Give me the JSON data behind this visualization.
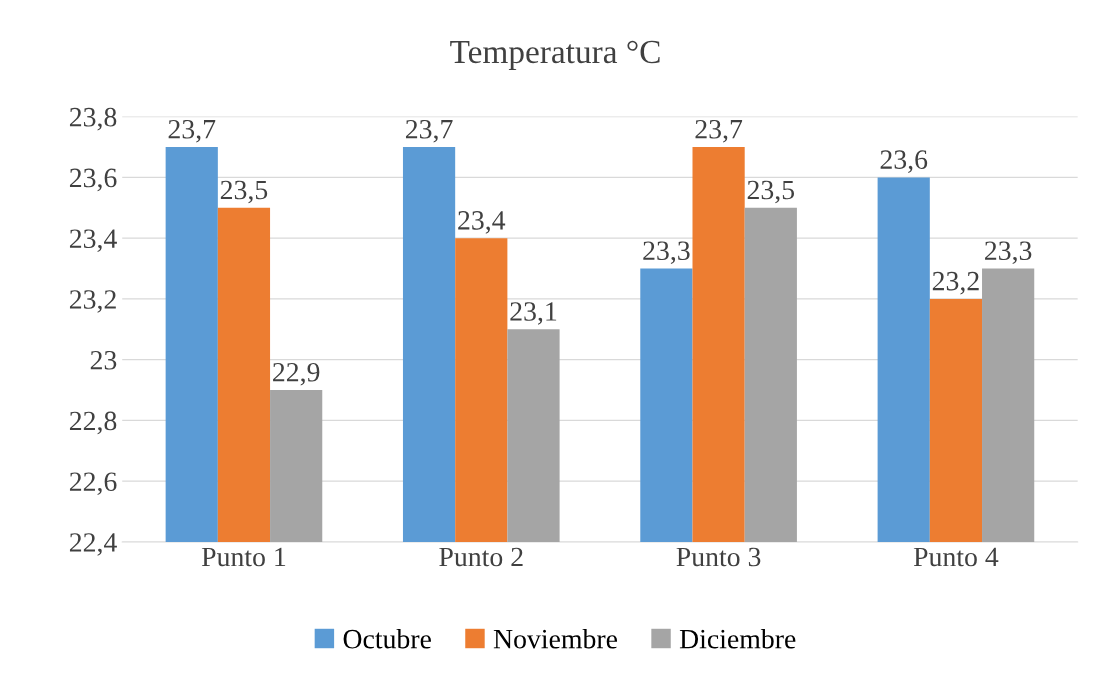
{
  "chart_data": {
    "type": "bar",
    "title": "Temperatura °C",
    "categories": [
      "Punto 1",
      "Punto 2",
      "Punto 3",
      "Punto 4"
    ],
    "series": [
      {
        "name": "Octubre",
        "color": "#5b9bd5",
        "values": [
          23.7,
          23.7,
          23.3,
          23.6
        ],
        "value_labels": [
          "23,7",
          "23,7",
          "23,3",
          "23,6"
        ]
      },
      {
        "name": "Noviembre",
        "color": "#ed7d31",
        "values": [
          23.5,
          23.4,
          23.7,
          23.2
        ],
        "value_labels": [
          "23,5",
          "23,4",
          "23,7",
          "23,2"
        ]
      },
      {
        "name": "Diciembre",
        "color": "#a5a5a5",
        "values": [
          22.9,
          23.1,
          23.5,
          23.3
        ],
        "value_labels": [
          "22,9",
          "23,1",
          "23,5",
          "23,3"
        ]
      }
    ],
    "ylim": [
      22.4,
      23.8
    ],
    "yticks": [
      {
        "value": 22.4,
        "label": "22,4"
      },
      {
        "value": 22.6,
        "label": "22,6"
      },
      {
        "value": 22.8,
        "label": "22,8"
      },
      23,
      {
        "value": 23.2,
        "label": "23,2"
      },
      {
        "value": 23.4,
        "label": "23,4"
      },
      {
        "value": 23.6,
        "label": "23,6"
      },
      {
        "value": 23.8,
        "label": "23,8"
      }
    ],
    "grid": "y",
    "legend": "bottom"
  }
}
